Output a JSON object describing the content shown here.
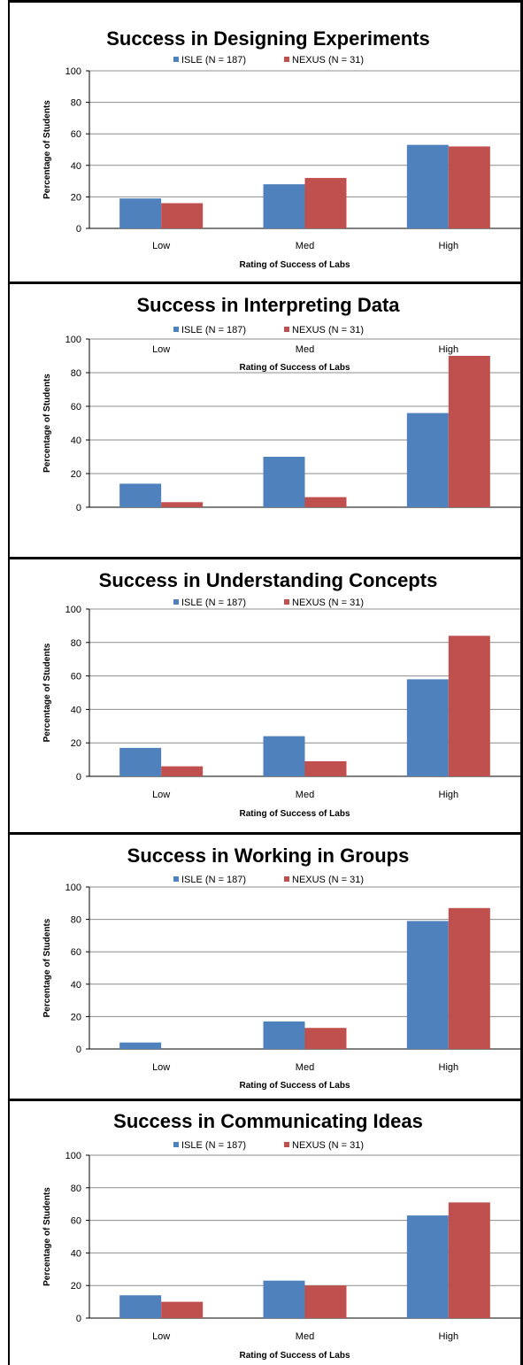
{
  "colors": {
    "isle": "#4f81bd",
    "nexus": "#c0504d",
    "grid": "#8c8c8c"
  },
  "chart_data": [
    {
      "type": "bar",
      "title": "Success in Designing Experiments",
      "categories": [
        "Low",
        "Med",
        "High"
      ],
      "series": [
        {
          "name": "ISLE (N = 187)",
          "values": [
            19,
            28,
            53
          ]
        },
        {
          "name": "NEXUS (N = 31)",
          "values": [
            16,
            32,
            52
          ]
        }
      ],
      "xlabel": "Rating of Success of Labs",
      "ylabel": "Percentage of Students",
      "ylim": [
        0,
        100
      ],
      "yticks": [
        "0",
        "20",
        "40",
        "60",
        "80",
        "100"
      ],
      "grid": true,
      "legend": "top"
    },
    {
      "type": "bar",
      "title": "Success in Interpreting Data",
      "categories": [
        "Low",
        "Med",
        "High"
      ],
      "series": [
        {
          "name": "ISLE (N = 187)",
          "values": [
            14,
            30,
            56
          ]
        },
        {
          "name": "NEXUS (N = 31)",
          "values": [
            3,
            6,
            90
          ]
        }
      ],
      "xlabel": "Rating of Success of Labs",
      "ylabel": "Percentage of Students",
      "ylim": [
        0,
        100
      ],
      "yticks": [
        "0",
        "20",
        "40",
        "60",
        "80",
        "100"
      ],
      "grid": true,
      "legend": "top"
    },
    {
      "type": "bar",
      "title": "Success in Understanding Concepts",
      "categories": [
        "Low",
        "Med",
        "High"
      ],
      "series": [
        {
          "name": "ISLE (N = 187)",
          "values": [
            17,
            24,
            58
          ]
        },
        {
          "name": "NEXUS (N = 31)",
          "values": [
            6,
            9,
            84
          ]
        }
      ],
      "xlabel": "Rating of Success of Labs",
      "ylabel": "Percentage of Students",
      "ylim": [
        0,
        100
      ],
      "yticks": [
        "0",
        "20",
        "40",
        "60",
        "80",
        "100"
      ],
      "grid": true,
      "legend": "top"
    },
    {
      "type": "bar",
      "title": "Success in Working in Groups",
      "categories": [
        "Low",
        "Med",
        "High"
      ],
      "series": [
        {
          "name": "ISLE (N = 187)",
          "values": [
            4,
            17,
            79
          ]
        },
        {
          "name": "NEXUS (N = 31)",
          "values": [
            0,
            13,
            87
          ]
        }
      ],
      "xlabel": "Rating of Success of Labs",
      "ylabel": "Percentage of Students",
      "ylim": [
        0,
        100
      ],
      "yticks": [
        "0",
        "20",
        "40",
        "60",
        "80",
        "100"
      ],
      "grid": true,
      "legend": "top"
    },
    {
      "type": "bar",
      "title": "Success in Communicating Ideas",
      "categories": [
        "Low",
        "Med",
        "High"
      ],
      "series": [
        {
          "name": "ISLE (N = 187)",
          "values": [
            14,
            23,
            63
          ]
        },
        {
          "name": "NEXUS (N = 31)",
          "values": [
            10,
            20,
            71
          ]
        }
      ],
      "xlabel": "Rating of Success of Labs",
      "ylabel": "Percentage of Students",
      "ylim": [
        0,
        100
      ],
      "yticks": [
        "0",
        "20",
        "40",
        "60",
        "80",
        "100"
      ],
      "grid": true,
      "legend": "top"
    }
  ]
}
